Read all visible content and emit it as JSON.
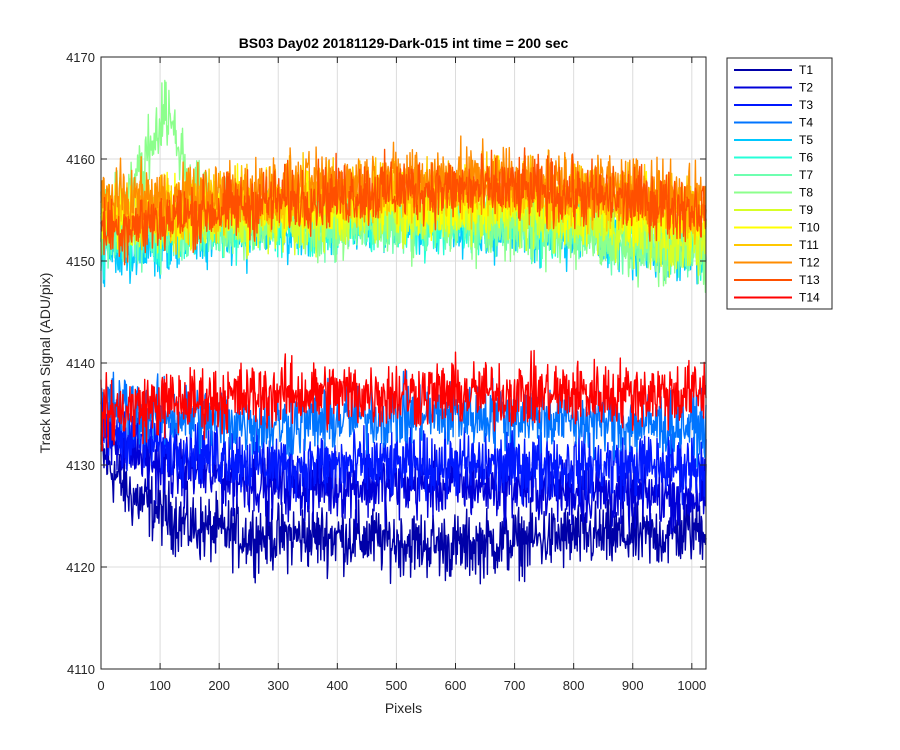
{
  "chart_data": {
    "type": "line",
    "title": "BS03 Day02 20181129-Dark-015 int time = 200 sec",
    "xlabel": "Pixels",
    "ylabel": "Track Mean Signal (ADU/pix)",
    "xlim": [
      0,
      1024
    ],
    "ylim": [
      4110,
      4170
    ],
    "xticks": [
      0,
      100,
      200,
      300,
      400,
      500,
      600,
      700,
      800,
      900,
      1000
    ],
    "yticks": [
      4110,
      4120,
      4130,
      4140,
      4150,
      4160,
      4170
    ],
    "grid": true,
    "legend_position": "outside-top-right",
    "noise_amplitude": 3.2,
    "series": [
      {
        "name": "T1",
        "color": "#0000a8",
        "x": [
          0,
          50,
          150,
          250,
          400,
          600,
          800,
          950,
          1024
        ],
        "y": [
          4131,
          4127,
          4124,
          4123,
          4123,
          4122,
          4123,
          4123,
          4124
        ]
      },
      {
        "name": "T2",
        "color": "#0000d8",
        "x": [
          0,
          100,
          300,
          500,
          700,
          900,
          1024
        ],
        "y": [
          4133,
          4130,
          4128,
          4128,
          4128,
          4127,
          4127
        ]
      },
      {
        "name": "T3",
        "color": "#0018ff",
        "x": [
          0,
          100,
          300,
          500,
          700,
          900,
          1024
        ],
        "y": [
          4134,
          4132,
          4130,
          4130,
          4130,
          4130,
          4130
        ]
      },
      {
        "name": "T4",
        "color": "#0074ff",
        "x": [
          0,
          100,
          300,
          500,
          700,
          900,
          1024
        ],
        "y": [
          4136,
          4135,
          4134,
          4135,
          4135,
          4134,
          4134
        ]
      },
      {
        "name": "T5",
        "color": "#00c8ff",
        "x": [
          0,
          60,
          200,
          400,
          600,
          800,
          950,
          1024
        ],
        "y": [
          4151,
          4151,
          4153,
          4154,
          4154,
          4153,
          4151,
          4151
        ]
      },
      {
        "name": "T6",
        "color": "#26ffd8",
        "x": [
          0,
          100,
          300,
          500,
          700,
          900,
          1024
        ],
        "y": [
          4152,
          4153,
          4154,
          4154,
          4154,
          4153,
          4152
        ]
      },
      {
        "name": "T7",
        "color": "#6effb0",
        "x": [
          0,
          100,
          300,
          500,
          700,
          900,
          1024
        ],
        "y": [
          4152,
          4153,
          4154,
          4154,
          4154,
          4152,
          4151
        ]
      },
      {
        "name": "T8",
        "color": "#8cff8c",
        "x": [
          0,
          60,
          110,
          150,
          200,
          400,
          600,
          800,
          950,
          1024
        ],
        "y": [
          4154,
          4158,
          4165,
          4158,
          4154,
          4154,
          4154,
          4153,
          4151,
          4151
        ]
      },
      {
        "name": "T9",
        "color": "#d8ff26",
        "x": [
          0,
          100,
          300,
          500,
          700,
          900,
          1024
        ],
        "y": [
          4154,
          4154,
          4154,
          4155,
          4155,
          4153,
          4152
        ]
      },
      {
        "name": "T10",
        "color": "#ffff00",
        "x": [
          0,
          100,
          300,
          500,
          700,
          900,
          1024
        ],
        "y": [
          4155,
          4155,
          4155,
          4156,
          4156,
          4155,
          4154
        ]
      },
      {
        "name": "T11",
        "color": "#ffc800",
        "x": [
          0,
          100,
          300,
          500,
          700,
          900,
          1024
        ],
        "y": [
          4155,
          4155,
          4156,
          4157,
          4157,
          4156,
          4155
        ]
      },
      {
        "name": "T12",
        "color": "#ff8c00",
        "x": [
          0,
          100,
          300,
          500,
          700,
          900,
          1024
        ],
        "y": [
          4156,
          4156,
          4157,
          4158,
          4158,
          4157,
          4156
        ]
      },
      {
        "name": "T13",
        "color": "#ff5000",
        "x": [
          0,
          100,
          300,
          500,
          700,
          900,
          1024
        ],
        "y": [
          4153,
          4154,
          4156,
          4157,
          4157,
          4156,
          4155
        ]
      },
      {
        "name": "T14",
        "color": "#ff0000",
        "x": [
          0,
          100,
          300,
          500,
          700,
          900,
          1024
        ],
        "y": [
          4135,
          4136,
          4137,
          4137,
          4137,
          4137,
          4137
        ]
      }
    ]
  }
}
